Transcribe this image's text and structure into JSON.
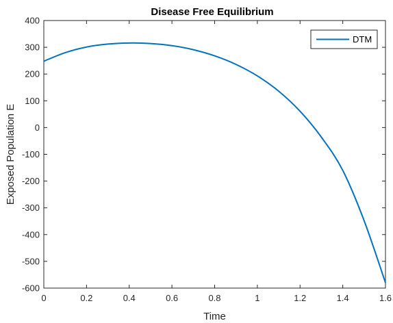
{
  "chart_data": {
    "type": "line",
    "title": "Disease Free Equilibrium",
    "xlabel": "Time",
    "ylabel": "Exposed Population E",
    "xlim": [
      0,
      1.6
    ],
    "ylim": [
      -600,
      400
    ],
    "xticks": [
      0,
      0.2,
      0.4,
      0.6,
      0.8,
      1,
      1.2,
      1.4,
      1.6
    ],
    "yticks": [
      -600,
      -500,
      -400,
      -300,
      -200,
      -100,
      0,
      100,
      200,
      300,
      400
    ],
    "grid": false,
    "legend_position": "top-right",
    "series": [
      {
        "name": "DTM",
        "color": "#0072BD",
        "x": [
          0,
          0.1,
          0.2,
          0.3,
          0.4,
          0.5,
          0.6,
          0.7,
          0.8,
          0.9,
          1.0,
          1.1,
          1.2,
          1.3,
          1.4,
          1.5,
          1.6
        ],
        "y": [
          248,
          280,
          301,
          312,
          316,
          314,
          306,
          291,
          268,
          236,
          193,
          136,
          61,
          -36,
          -160,
          -348,
          -580
        ]
      }
    ]
  }
}
